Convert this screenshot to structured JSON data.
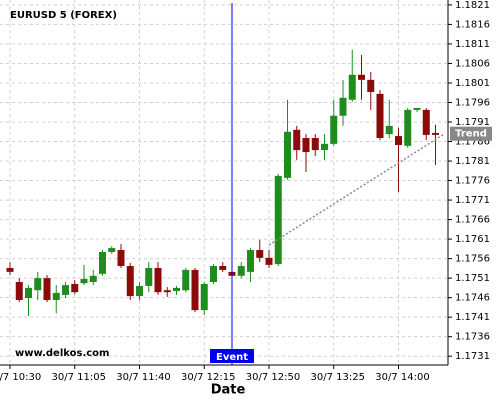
{
  "chart_data": {
    "type": "candlestick",
    "title": "EURUSD 5 (FOREX)",
    "x_label": "Date",
    "watermark": "www.delkos.com",
    "categories": [
      "30/7 10:30",
      null,
      null,
      null,
      null,
      null,
      null,
      "30/7 11:05",
      null,
      null,
      null,
      null,
      null,
      null,
      "30/7 11:40",
      null,
      null,
      null,
      null,
      null,
      null,
      "30/7 12:15",
      null,
      null,
      null,
      null,
      null,
      null,
      "30/7 12:50",
      null,
      null,
      null,
      null,
      null,
      null,
      "30/7 13:25",
      null,
      null,
      null,
      null,
      null,
      null,
      "30/7 14:00",
      null,
      null,
      null,
      null
    ],
    "open": [
      1.17536,
      1.175,
      1.17459,
      1.17479,
      1.1751,
      1.17454,
      1.17467,
      1.17495,
      1.17497,
      1.175,
      1.17521,
      1.17577,
      1.17582,
      1.17541,
      1.17464,
      1.1749,
      1.17536,
      1.17479,
      1.17477,
      1.17479,
      1.17531,
      1.17428,
      1.175,
      1.17541,
      1.17526,
      1.17516,
      1.17526,
      1.17582,
      1.17562,
      1.17546,
      1.17767,
      1.1789,
      1.17869,
      1.17869,
      1.17838,
      1.17854,
      1.17926,
      1.17967,
      1.18031,
      1.18018,
      1.17982,
      1.17879,
      1.17874,
      1.17849,
      1.17941,
      1.17941,
      1.17882
    ],
    "high": [
      1.17551,
      1.1751,
      1.17492,
      1.17526,
      1.17518,
      1.17492,
      1.175,
      1.17505,
      1.17544,
      1.17531,
      1.17582,
      1.17592,
      1.17597,
      1.17549,
      1.175,
      1.17551,
      1.17551,
      1.17487,
      1.1749,
      1.17536,
      1.17536,
      1.175,
      1.17546,
      1.17551,
      1.17536,
      1.17551,
      1.17587,
      1.17608,
      1.17582,
      1.17777,
      1.17967,
      1.179,
      1.17879,
      1.17879,
      1.17879,
      1.17967,
      1.18018,
      1.18095,
      1.18082,
      1.18038,
      1.17992,
      1.17967,
      1.17895,
      1.17946,
      1.17946,
      1.17946,
      1.17903
    ],
    "low": [
      1.17518,
      1.17449,
      1.17413,
      1.17454,
      1.17449,
      1.1742,
      1.17459,
      1.17469,
      1.17492,
      1.17492,
      1.17516,
      1.17572,
      1.17536,
      1.17454,
      1.17454,
      1.17474,
      1.17467,
      1.17462,
      1.17467,
      1.17474,
      1.17423,
      1.17415,
      1.17495,
      1.17526,
      1.1751,
      1.1751,
      1.175,
      1.17551,
      1.17536,
      1.17541,
      1.17762,
      1.17813,
      1.17782,
      1.17823,
      1.17813,
      1.17849,
      1.179,
      1.17962,
      1.17967,
      1.17941,
      1.17864,
      1.17869,
      1.17731,
      1.17844,
      1.17936,
      1.17864,
      1.178
    ],
    "close": [
      1.17526,
      1.17454,
      1.17485,
      1.1751,
      1.17454,
      1.17472,
      1.17492,
      1.17474,
      1.17508,
      1.17516,
      1.17577,
      1.17587,
      1.17541,
      1.17464,
      1.1749,
      1.17536,
      1.17474,
      1.17474,
      1.17485,
      1.17531,
      1.17428,
      1.17495,
      1.17541,
      1.17531,
      1.17516,
      1.17541,
      1.17582,
      1.17562,
      1.17544,
      1.17772,
      1.17885,
      1.17838,
      1.17833,
      1.17838,
      1.17854,
      1.17926,
      1.17972,
      1.18031,
      1.18018,
      1.17987,
      1.17869,
      1.179,
      1.17851,
      1.17941,
      1.17946,
      1.17877,
      1.17877
    ],
    "up_color": "#1e8c1e",
    "down_color": "#8b0a0a",
    "ylim": [
      1.1729,
      1.1822
    ],
    "yticks": [
      1.1731,
      1.1736,
      1.1741,
      1.1746,
      1.1751,
      1.1756,
      1.1761,
      1.1766,
      1.1771,
      1.1776,
      1.1781,
      1.1786,
      1.1791,
      1.1796,
      1.1801,
      1.1806,
      1.1811,
      1.1816,
      1.1821
    ],
    "grid": true,
    "event": {
      "label": "Event",
      "index": 24,
      "color": "#0000ee"
    },
    "trend": {
      "label": "Trend",
      "x": [
        28,
        47
      ],
      "values": [
        1.17595,
        1.1788
      ],
      "color": "#888888"
    }
  }
}
